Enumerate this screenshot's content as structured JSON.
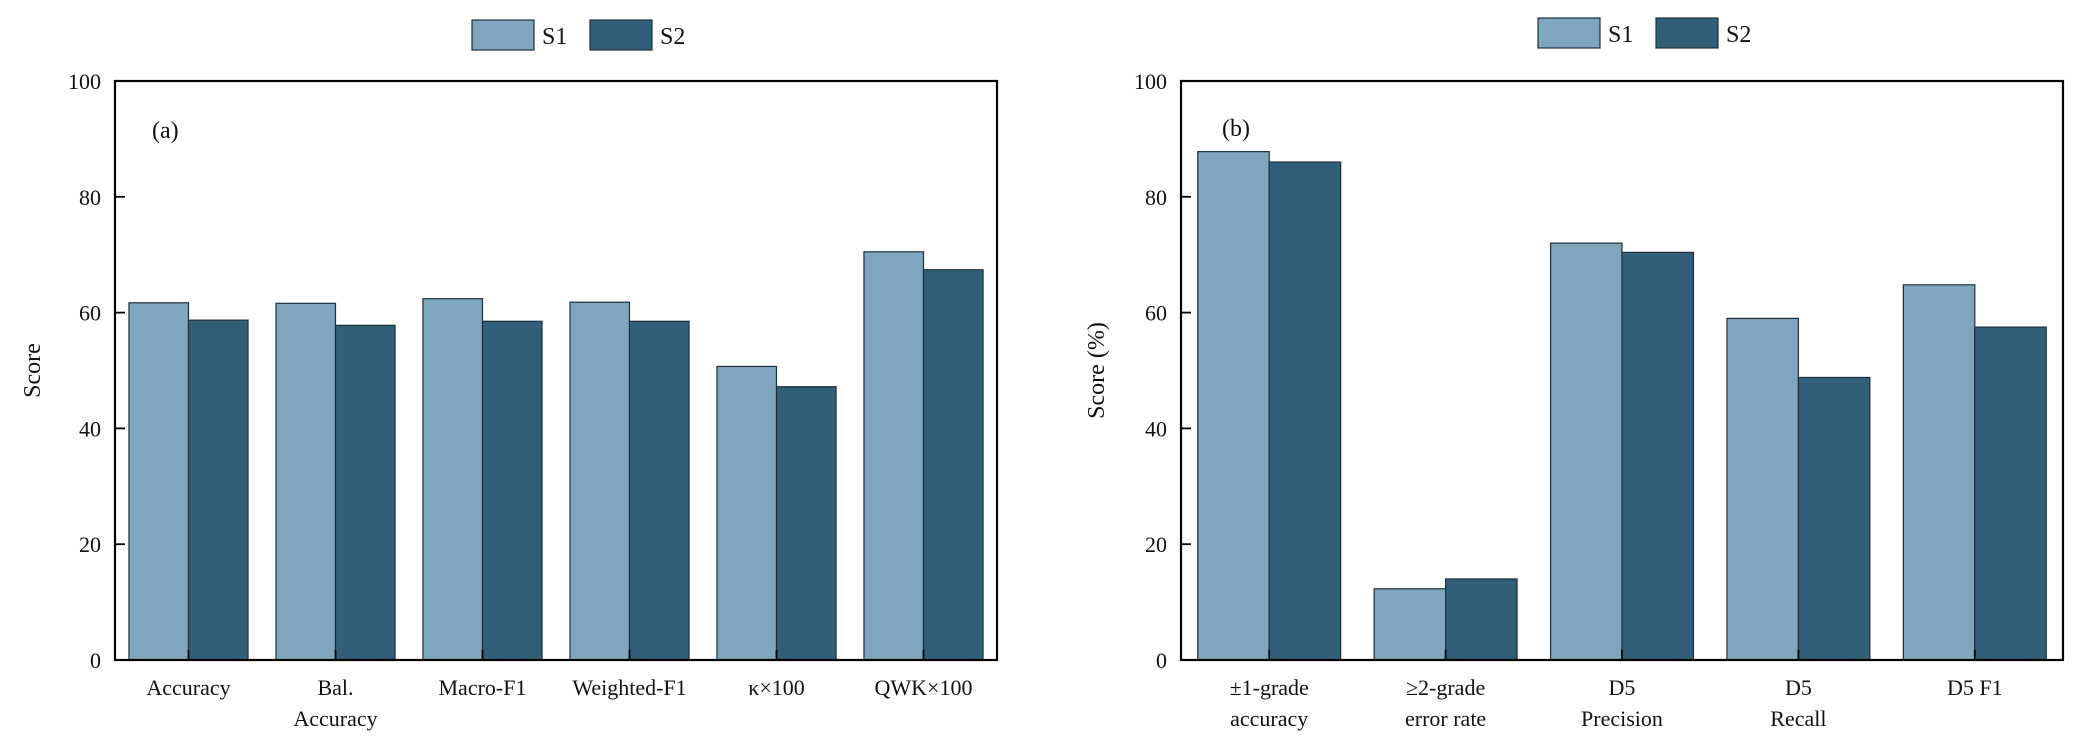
{
  "chart_data": [
    {
      "type": "bar",
      "panel_label": "(a)",
      "ylabel": "Score",
      "ylim": [
        0,
        100
      ],
      "yticks": [
        0,
        20,
        40,
        60,
        80,
        100
      ],
      "categories": [
        [
          "Accuracy"
        ],
        [
          "Bal.",
          "Accuracy"
        ],
        [
          "Macro-F1"
        ],
        [
          "Weighted-F1"
        ],
        [
          "κ×100"
        ],
        [
          "QWK×100"
        ]
      ],
      "series": [
        {
          "name": "S1",
          "color": "#7fa6bf",
          "values": [
            61.7,
            61.6,
            62.4,
            61.8,
            50.7,
            70.5
          ]
        },
        {
          "name": "S2",
          "color": "#315e78",
          "values": [
            58.7,
            57.8,
            58.5,
            58.5,
            47.2,
            67.4
          ]
        }
      ],
      "legend": "top-center",
      "grid": false
    },
    {
      "type": "bar",
      "panel_label": "(b)",
      "ylabel": "Score (%)",
      "ylim": [
        0,
        100
      ],
      "yticks": [
        0,
        20,
        40,
        60,
        80,
        100
      ],
      "categories": [
        [
          "±1-grade",
          "accuracy"
        ],
        [
          "≥2-grade",
          "error rate"
        ],
        [
          "D5",
          "Precision"
        ],
        [
          "D5",
          "Recall"
        ],
        [
          "D5 F1"
        ]
      ],
      "series": [
        {
          "name": "S1",
          "color": "#7fa6bf",
          "values": [
            87.8,
            12.3,
            72.0,
            59.0,
            64.8
          ]
        },
        {
          "name": "S2",
          "color": "#315e78",
          "values": [
            86.0,
            14.0,
            70.4,
            48.8,
            57.5
          ]
        }
      ],
      "legend": "top-center",
      "grid": false
    }
  ]
}
